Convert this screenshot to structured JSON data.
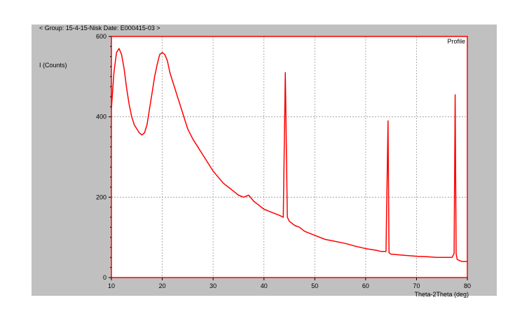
{
  "header": {
    "text": "< Group: 15-4-15-Nisk   Date: E000415-03 >"
  },
  "chart_data": {
    "type": "line",
    "legend": "Profile",
    "ylabel": "I (Counts)",
    "xlabel": "Theta-2Theta (deg)",
    "xlim": [
      10,
      80
    ],
    "ylim": [
      0,
      600
    ],
    "x_ticks": [
      10,
      20,
      30,
      40,
      50,
      60,
      70,
      80
    ],
    "y_ticks": [
      {
        "value": 0,
        "label": "0"
      },
      {
        "value": 200,
        "label": "200"
      },
      {
        "value": 400,
        "label": "400"
      },
      {
        "value": 600,
        "label": "600"
      }
    ],
    "grid": true,
    "colors": {
      "line": "#ff0000",
      "frame": "#ff0000",
      "plot_bg": "#ffffff",
      "panel_bg": "#c0c0c0",
      "grid": "#999999"
    },
    "series": [
      {
        "x": [
          10,
          10.5,
          11,
          11.5,
          12,
          12.5,
          13,
          13.5,
          14,
          14.5,
          15,
          15.5,
          16,
          16.5,
          17,
          17.5,
          18,
          18.5,
          19,
          19.5,
          20,
          20.5,
          21,
          21.5,
          22,
          22.5,
          23,
          23.5,
          24,
          24.5,
          25,
          26,
          27,
          28,
          29,
          30,
          31,
          32,
          33,
          34,
          35,
          36,
          37,
          38,
          39,
          40,
          41,
          42,
          43,
          43.8,
          44.2,
          44.6,
          45,
          46,
          47,
          48,
          49,
          50,
          52,
          54,
          56,
          58,
          60,
          62,
          63,
          64,
          64.4,
          64.6,
          65,
          65.5,
          66,
          68,
          70,
          72,
          74,
          76,
          77,
          77.4,
          77.6,
          77.8,
          78,
          78.5,
          79,
          80
        ],
        "y": [
          420,
          510,
          560,
          570,
          555,
          520,
          470,
          430,
          400,
          380,
          370,
          360,
          355,
          360,
          380,
          420,
          460,
          500,
          530,
          555,
          560,
          555,
          540,
          510,
          490,
          470,
          450,
          430,
          410,
          390,
          370,
          345,
          325,
          305,
          285,
          265,
          250,
          235,
          225,
          215,
          205,
          200,
          205,
          190,
          180,
          170,
          165,
          160,
          155,
          150,
          510,
          150,
          140,
          130,
          125,
          115,
          110,
          105,
          95,
          90,
          85,
          78,
          72,
          68,
          65,
          65,
          390,
          62,
          58,
          58,
          57,
          55,
          53,
          52,
          50,
          50,
          50,
          60,
          455,
          60,
          45,
          42,
          40,
          40
        ]
      }
    ]
  }
}
